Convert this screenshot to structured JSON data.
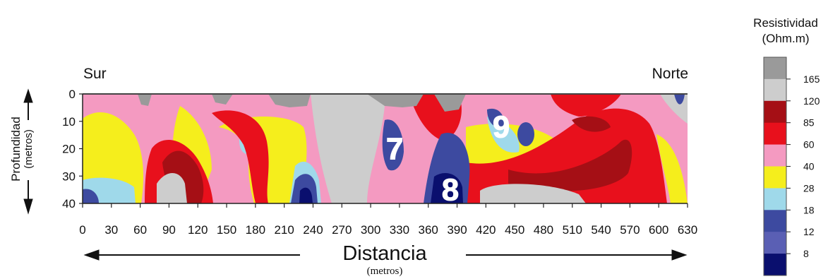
{
  "chart_data": {
    "type": "heatmap",
    "direction_left": "Sur",
    "direction_right": "Norte",
    "xlabel": "Distancia",
    "xunit": "(metros)",
    "ylabel": "Profundidad",
    "yunit": "(metros)",
    "x_ticks": [
      0,
      30,
      60,
      90,
      120,
      150,
      180,
      210,
      240,
      270,
      300,
      330,
      360,
      390,
      420,
      450,
      480,
      510,
      540,
      570,
      600,
      630
    ],
    "y_ticks": [
      0,
      10,
      20,
      30,
      40
    ],
    "xlim": [
      0,
      630
    ],
    "ylim": [
      0,
      40
    ],
    "markers": [
      {
        "label": "7",
        "x": 325,
        "depth": 20
      },
      {
        "label": "8",
        "x": 383,
        "depth": 35
      },
      {
        "label": "9",
        "x": 436,
        "depth": 12
      }
    ],
    "legend": {
      "title_line1": "Resistividad",
      "title_line2": "(Ohm.m)",
      "ticks": [
        "165",
        "120",
        "85",
        "60",
        "40",
        "28",
        "18",
        "12",
        "8"
      ],
      "colors": [
        "#9a9a9a",
        "#cdcdcd",
        "#a50f15",
        "#e8101c",
        "#f49ac1",
        "#f5ee1c",
        "#9fd9ea",
        "#3d4aa0",
        "#5a5fb4",
        "#0a0f6e"
      ]
    },
    "palette": {
      "gray": "#9a9a9a",
      "lightgray": "#cdcdcd",
      "darkred": "#a50f15",
      "red": "#e8101c",
      "pink": "#f49ac1",
      "yellow": "#f5ee1c",
      "lightblue": "#9fd9ea",
      "blue": "#3d4aa0",
      "navy": "#0a0f6e"
    }
  }
}
